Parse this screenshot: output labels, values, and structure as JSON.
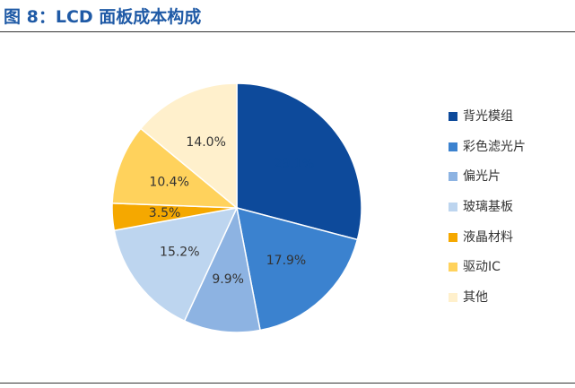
{
  "title": "图 8：LCD 面板成本构成",
  "chart_data": {
    "type": "pie",
    "categories": [
      "背光模组",
      "彩色滤光片",
      "偏光片",
      "玻璃基板",
      "液晶材料",
      "驱动IC",
      "其他"
    ],
    "values": [
      29.1,
      17.9,
      9.9,
      15.2,
      3.5,
      10.4,
      14.0
    ],
    "labels": [
      "29.1%",
      "17.9%",
      "9.9%",
      "15.2%",
      "3.5%",
      "10.4%",
      "14.0%"
    ],
    "colors": [
      "#0d4a9b",
      "#3b82cf",
      "#8db3e2",
      "#bdd5ef",
      "#f5a800",
      "#ffd25c",
      "#fff0cc"
    ],
    "label_colors": [
      "#0d4a9b",
      "#333333",
      "#333333",
      "#333333",
      "#333333",
      "#333333",
      "#333333"
    ],
    "start_angle_deg": 0,
    "direction": "clockwise",
    "legend_position": "right"
  }
}
